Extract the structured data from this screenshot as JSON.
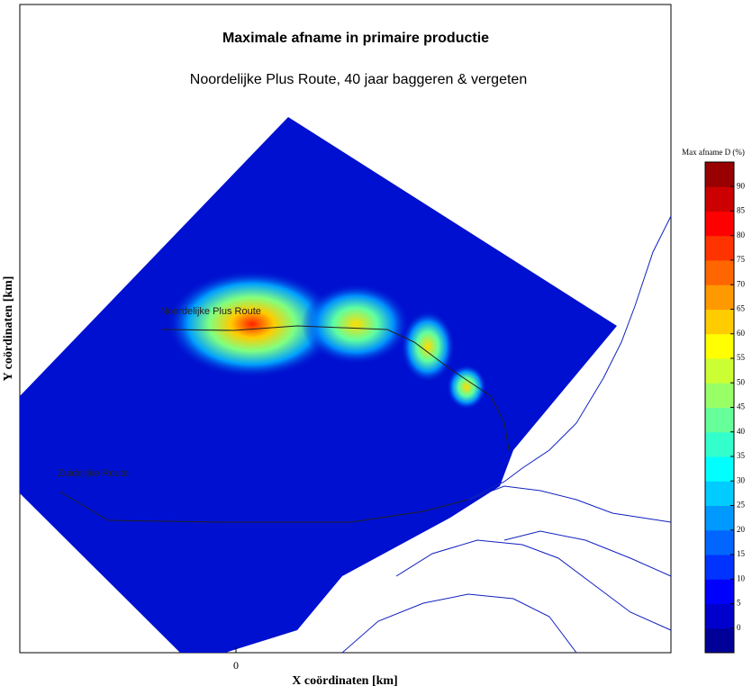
{
  "chart_data": {
    "type": "heatmap-map",
    "title": "Maximale afname in primaire productie",
    "subtitle": "Noordelijke Plus Route, 40 jaar baggeren & vergeten",
    "x_label": "X coördinaten [km]",
    "y_label": "Y coördinaten [km]",
    "xticks": [
      0
    ],
    "annotations": [
      "Noordelijke Plus Route",
      "Zuidelijke Route"
    ],
    "colorbar": {
      "title": "Max afname D (%)",
      "clim": [
        -5,
        95
      ],
      "ticks": [
        0,
        5,
        10,
        15,
        20,
        25,
        30,
        35,
        40,
        45,
        50,
        55,
        60,
        65,
        70,
        75,
        80,
        85,
        90
      ],
      "colors": [
        "#000099",
        "#0000cc",
        "#0000ff",
        "#0033ff",
        "#0066ff",
        "#0099ff",
        "#00ccff",
        "#00ffff",
        "#33ffcc",
        "#66ff99",
        "#99ff66",
        "#ccff33",
        "#ffff00",
        "#ffcc00",
        "#ff9900",
        "#ff6600",
        "#ff3300",
        "#ff0000",
        "#cc0000",
        "#990000"
      ]
    }
  }
}
